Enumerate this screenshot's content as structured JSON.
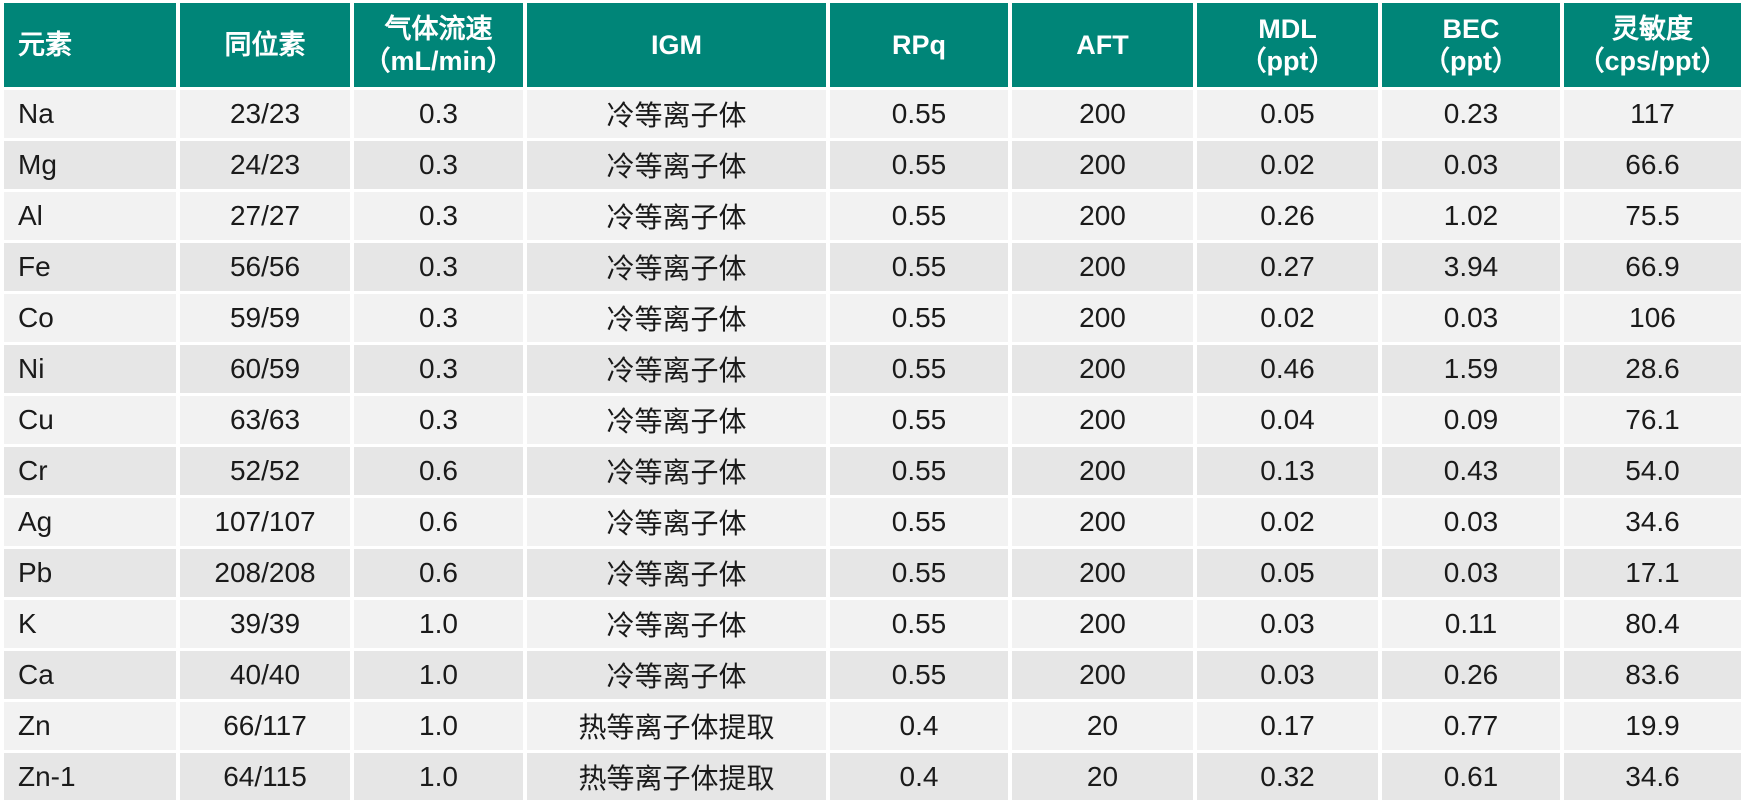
{
  "theme": {
    "header_bg": "#008578",
    "header_text": "#ffffff",
    "row_light_bg": "#f2f2f2",
    "row_dark_bg": "#e6e6e6",
    "body_text": "#1a1a1a",
    "grid_line": "#ffffff"
  },
  "table": {
    "columns": [
      {
        "id": "element",
        "line1": "元素",
        "line2": ""
      },
      {
        "id": "isotope",
        "line1": "同位素",
        "line2": ""
      },
      {
        "id": "gas-flow",
        "line1": "气体流速",
        "line2": "（mL/min）"
      },
      {
        "id": "igm",
        "line1": "IGM",
        "line2": ""
      },
      {
        "id": "rpq",
        "line1": "RPq",
        "line2": ""
      },
      {
        "id": "aft",
        "line1": "AFT",
        "line2": ""
      },
      {
        "id": "mdl",
        "line1": "MDL",
        "line2": "（ppt）"
      },
      {
        "id": "bec",
        "line1": "BEC",
        "line2": "（ppt）"
      },
      {
        "id": "sensitivity",
        "line1": "灵敏度",
        "line2": "（cps/ppt）"
      }
    ],
    "rows": [
      [
        "Na",
        "23/23",
        "0.3",
        "冷等离子体",
        "0.55",
        "200",
        "0.05",
        "0.23",
        "117"
      ],
      [
        "Mg",
        "24/23",
        "0.3",
        "冷等离子体",
        "0.55",
        "200",
        "0.02",
        "0.03",
        "66.6"
      ],
      [
        "Al",
        "27/27",
        "0.3",
        "冷等离子体",
        "0.55",
        "200",
        "0.26",
        "1.02",
        "75.5"
      ],
      [
        "Fe",
        "56/56",
        "0.3",
        "冷等离子体",
        "0.55",
        "200",
        "0.27",
        "3.94",
        "66.9"
      ],
      [
        "Co",
        "59/59",
        "0.3",
        "冷等离子体",
        "0.55",
        "200",
        "0.02",
        "0.03",
        "106"
      ],
      [
        "Ni",
        "60/59",
        "0.3",
        "冷等离子体",
        "0.55",
        "200",
        "0.46",
        "1.59",
        "28.6"
      ],
      [
        "Cu",
        "63/63",
        "0.3",
        "冷等离子体",
        "0.55",
        "200",
        "0.04",
        "0.09",
        "76.1"
      ],
      [
        "Cr",
        "52/52",
        "0.6",
        "冷等离子体",
        "0.55",
        "200",
        "0.13",
        "0.43",
        "54.0"
      ],
      [
        "Ag",
        "107/107",
        "0.6",
        "冷等离子体",
        "0.55",
        "200",
        "0.02",
        "0.03",
        "34.6"
      ],
      [
        "Pb",
        "208/208",
        "0.6",
        "冷等离子体",
        "0.55",
        "200",
        "0.05",
        "0.03",
        "17.1"
      ],
      [
        "K",
        "39/39",
        "1.0",
        "冷等离子体",
        "0.55",
        "200",
        "0.03",
        "0.11",
        "80.4"
      ],
      [
        "Ca",
        "40/40",
        "1.0",
        "冷等离子体",
        "0.55",
        "200",
        "0.03",
        "0.26",
        "83.6"
      ],
      [
        "Zn",
        "66/117",
        "1.0",
        "热等离子体提取",
        "0.4",
        "20",
        "0.17",
        "0.77",
        "19.9"
      ],
      [
        "Zn-1",
        "64/115",
        "1.0",
        "热等离子体提取",
        "0.4",
        "20",
        "0.32",
        "0.61",
        "34.6"
      ]
    ]
  }
}
